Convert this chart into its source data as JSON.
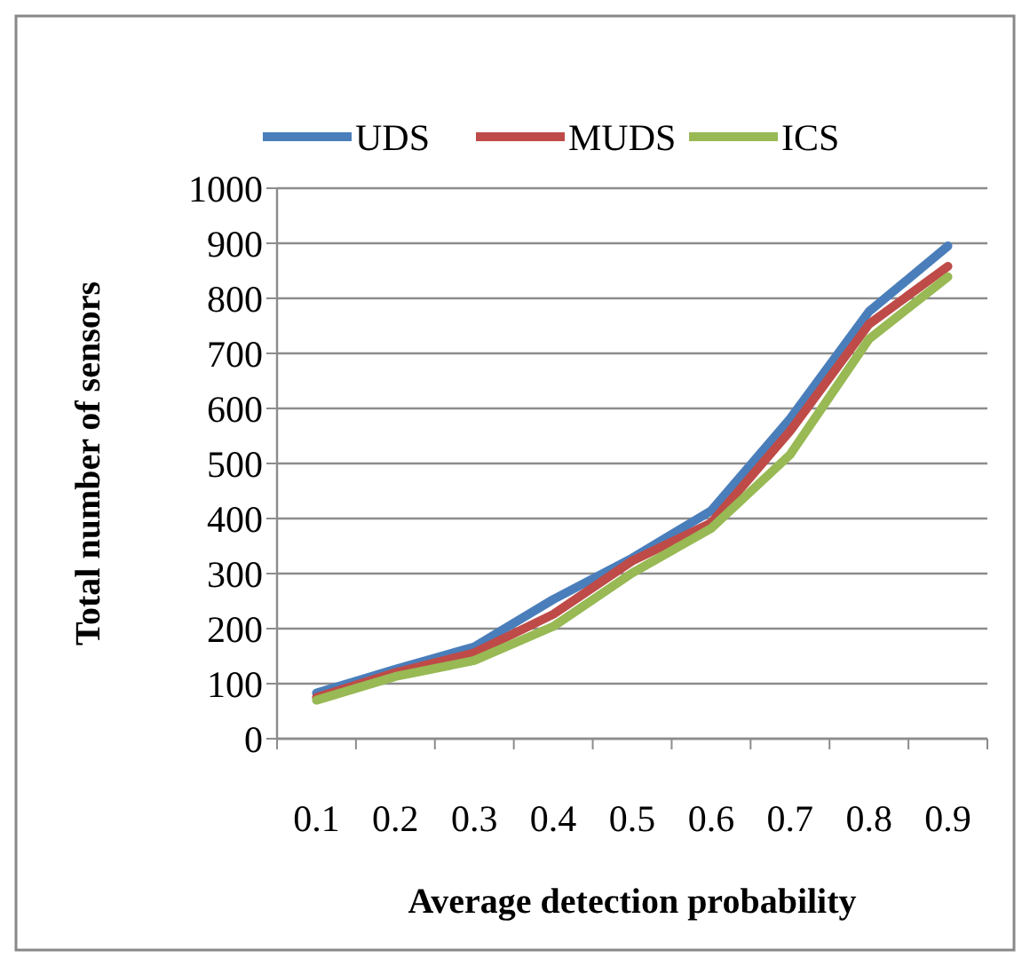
{
  "chart_data": {
    "type": "line",
    "xlabel": "Average detection probability",
    "ylabel": "Total number of sensors",
    "categories": [
      "0.1",
      "0.2",
      "0.3",
      "0.4",
      "0.5",
      "0.6",
      "0.7",
      "0.8",
      "0.9"
    ],
    "series": [
      {
        "name": "UDS",
        "color": "#4a7ebb",
        "values": [
          83,
          126,
          167,
          253,
          328,
          414,
          581,
          776,
          895
        ]
      },
      {
        "name": "MUDS",
        "color": "#be4b48",
        "values": [
          75,
          120,
          156,
          226,
          323,
          392,
          559,
          753,
          858
        ]
      },
      {
        "name": "ICS",
        "color": "#98b954",
        "values": [
          70,
          113,
          142,
          204,
          301,
          382,
          516,
          726,
          839
        ]
      }
    ],
    "ylim": [
      0,
      1000
    ],
    "yticks": [
      0,
      100,
      200,
      300,
      400,
      500,
      600,
      700,
      800,
      900,
      1000
    ],
    "grid": "y",
    "legend": "top",
    "marker": "none",
    "line_style": "solid"
  }
}
